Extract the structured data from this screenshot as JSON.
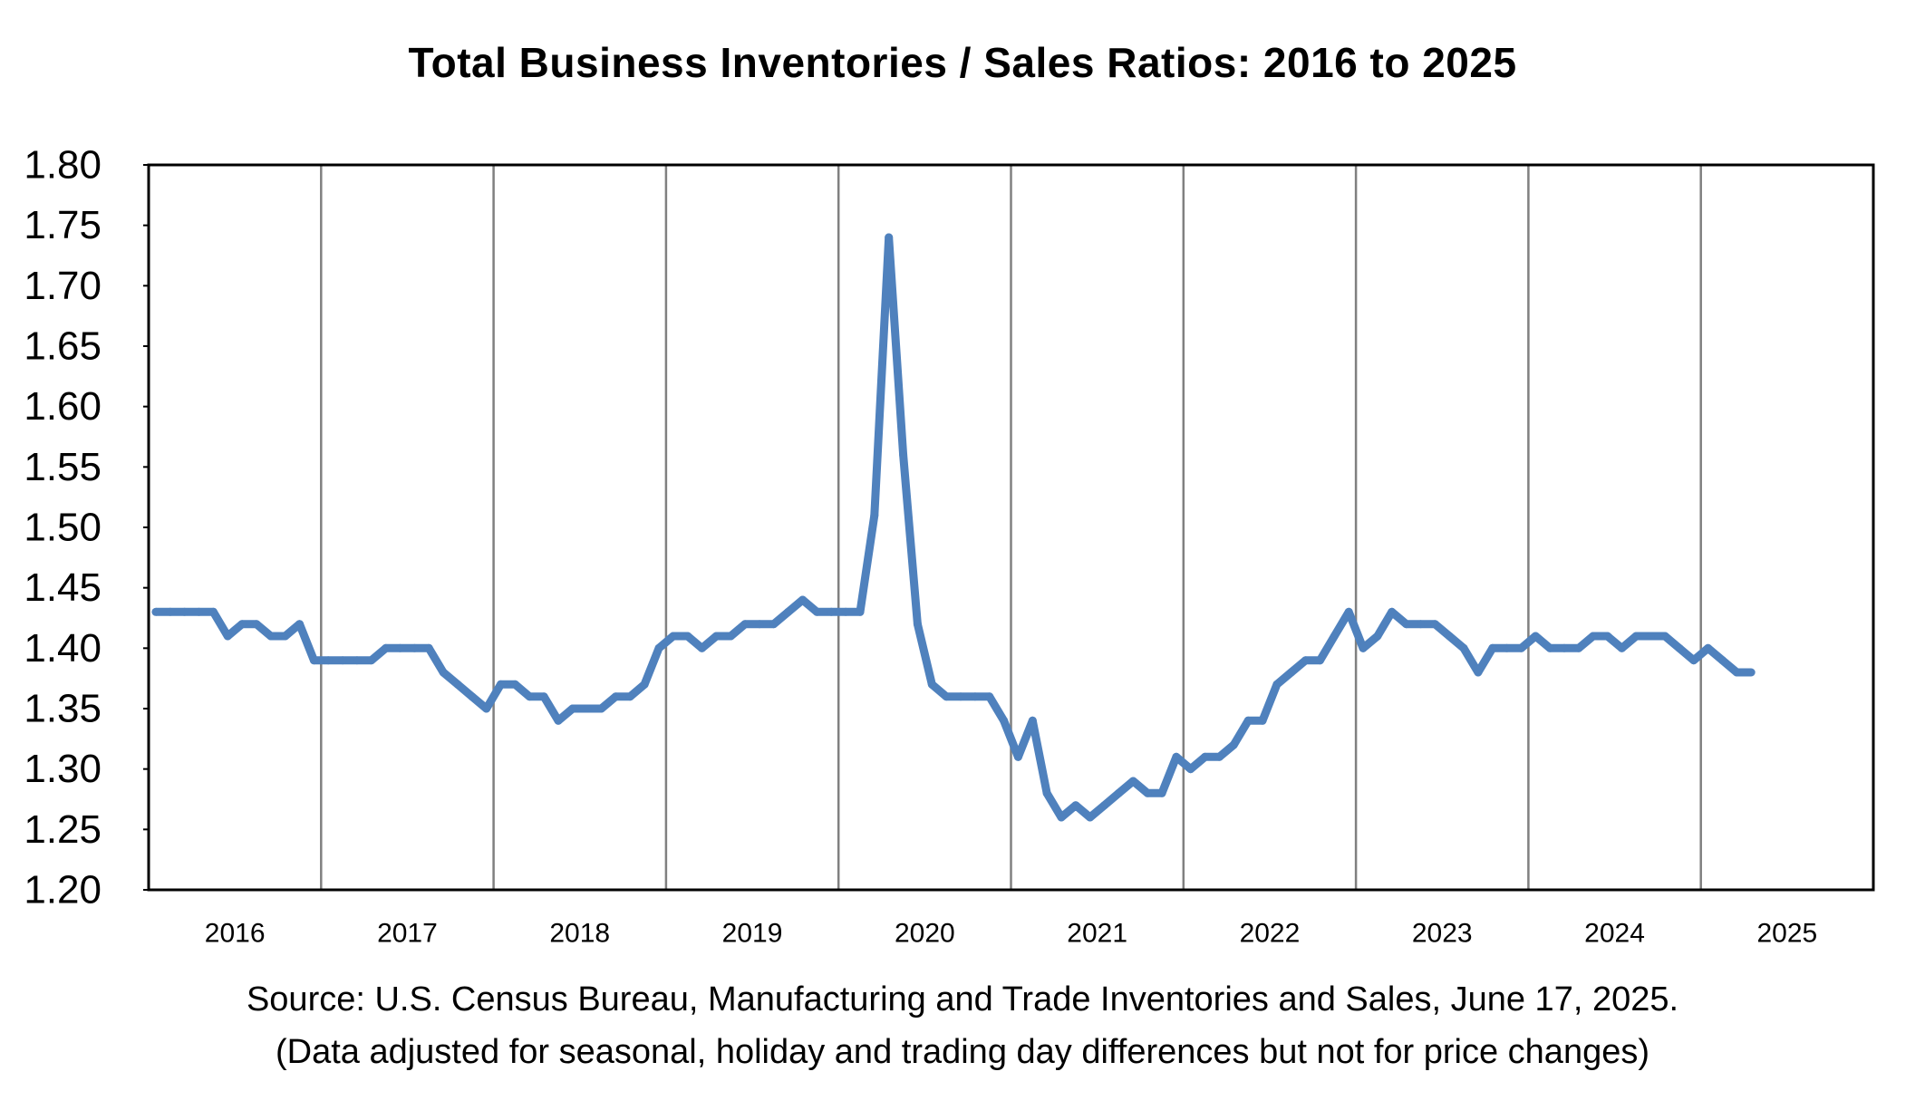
{
  "chart_data": {
    "type": "line",
    "title": "Total Business Inventories / Sales Ratios: 2016 to 2025",
    "xlabel": "",
    "ylabel": "",
    "ylim": [
      1.2,
      1.8
    ],
    "y_ticks": [
      "1.20",
      "1.25",
      "1.30",
      "1.35",
      "1.40",
      "1.45",
      "1.50",
      "1.55",
      "1.60",
      "1.65",
      "1.70",
      "1.75",
      "1.80"
    ],
    "x_tick_labels": [
      "2016",
      "2017",
      "2018",
      "2019",
      "2020",
      "2021",
      "2022",
      "2023",
      "2024",
      "2025"
    ],
    "x_range": [
      "2016-01",
      "2025-12"
    ],
    "grid": "vertical lines between years",
    "legend": "none",
    "series": [
      {
        "color": "#4F81BD",
        "x": [
          "2016-01",
          "2016-02",
          "2016-03",
          "2016-04",
          "2016-05",
          "2016-06",
          "2016-07",
          "2016-08",
          "2016-09",
          "2016-10",
          "2016-11",
          "2016-12",
          "2017-01",
          "2017-02",
          "2017-03",
          "2017-04",
          "2017-05",
          "2017-06",
          "2017-07",
          "2017-08",
          "2017-09",
          "2017-10",
          "2017-11",
          "2017-12",
          "2018-01",
          "2018-02",
          "2018-03",
          "2018-04",
          "2018-05",
          "2018-06",
          "2018-07",
          "2018-08",
          "2018-09",
          "2018-10",
          "2018-11",
          "2018-12",
          "2019-01",
          "2019-02",
          "2019-03",
          "2019-04",
          "2019-05",
          "2019-06",
          "2019-07",
          "2019-08",
          "2019-09",
          "2019-10",
          "2019-11",
          "2019-12",
          "2020-01",
          "2020-02",
          "2020-03",
          "2020-04",
          "2020-05",
          "2020-06",
          "2020-07",
          "2020-08",
          "2020-09",
          "2020-10",
          "2020-11",
          "2020-12",
          "2021-01",
          "2021-02",
          "2021-03",
          "2021-04",
          "2021-05",
          "2021-06",
          "2021-07",
          "2021-08",
          "2021-09",
          "2021-10",
          "2021-11",
          "2021-12",
          "2022-01",
          "2022-02",
          "2022-03",
          "2022-04",
          "2022-05",
          "2022-06",
          "2022-07",
          "2022-08",
          "2022-09",
          "2022-10",
          "2022-11",
          "2022-12",
          "2023-01",
          "2023-02",
          "2023-03",
          "2023-04",
          "2023-05",
          "2023-06",
          "2023-07",
          "2023-08",
          "2023-09",
          "2023-10",
          "2023-11",
          "2023-12",
          "2024-01",
          "2024-02",
          "2024-03",
          "2024-04",
          "2024-05",
          "2024-06",
          "2024-07",
          "2024-08",
          "2024-09",
          "2024-10",
          "2024-11",
          "2024-12",
          "2025-01",
          "2025-02",
          "2025-03",
          "2025-04"
        ],
        "values": [
          1.43,
          1.43,
          1.43,
          1.43,
          1.43,
          1.41,
          1.42,
          1.42,
          1.41,
          1.41,
          1.42,
          1.39,
          1.39,
          1.39,
          1.39,
          1.39,
          1.4,
          1.4,
          1.4,
          1.4,
          1.38,
          1.37,
          1.36,
          1.35,
          1.37,
          1.37,
          1.36,
          1.36,
          1.34,
          1.35,
          1.35,
          1.35,
          1.36,
          1.36,
          1.37,
          1.4,
          1.41,
          1.41,
          1.4,
          1.41,
          1.41,
          1.42,
          1.42,
          1.42,
          1.43,
          1.44,
          1.43,
          1.43,
          1.43,
          1.43,
          1.51,
          1.74,
          1.56,
          1.42,
          1.37,
          1.36,
          1.36,
          1.36,
          1.36,
          1.34,
          1.31,
          1.34,
          1.28,
          1.26,
          1.27,
          1.26,
          1.27,
          1.28,
          1.29,
          1.28,
          1.28,
          1.31,
          1.3,
          1.31,
          1.31,
          1.32,
          1.34,
          1.34,
          1.37,
          1.38,
          1.39,
          1.39,
          1.41,
          1.43,
          1.4,
          1.41,
          1.43,
          1.42,
          1.42,
          1.42,
          1.41,
          1.4,
          1.38,
          1.4,
          1.4,
          1.4,
          1.41,
          1.4,
          1.4,
          1.4,
          1.41,
          1.41,
          1.4,
          1.41,
          1.41,
          1.41,
          1.4,
          1.39,
          1.4,
          1.39,
          1.38,
          1.38
        ]
      }
    ]
  },
  "source_text": "Source: U.S. Census Bureau, Manufacturing and Trade Inventories and Sales, June 17, 2025.",
  "note_text": "(Data adjusted for seasonal, holiday and trading day differences but not for price changes)"
}
